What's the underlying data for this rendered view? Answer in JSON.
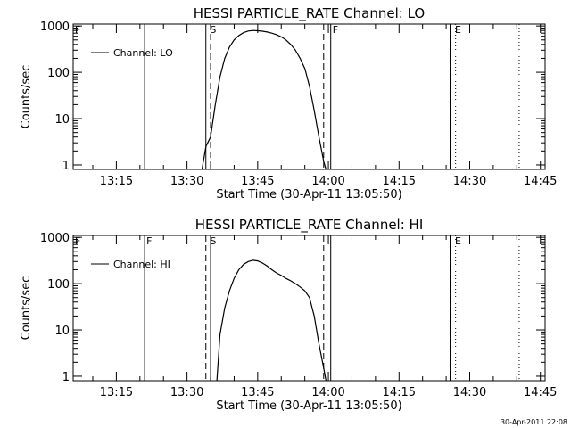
{
  "chart_data": [
    {
      "type": "line",
      "title": "HESSI PARTICLE_RATE Channel: LO",
      "xlabel": "Start Time (30-Apr-11 13:05:50)",
      "ylabel": "Counts/sec",
      "yscale": "log",
      "xlim": [
        "13:05:50",
        "14:46:00"
      ],
      "ylim": [
        0.8,
        1100
      ],
      "x_tick_labels": [
        "13:15",
        "13:30",
        "13:45",
        "14:00",
        "14:15",
        "14:30",
        "14:45"
      ],
      "y_tick_labels": [
        "1",
        "10",
        "100",
        "1000"
      ],
      "legend": {
        "position": "upper-left",
        "entries": [
          "Channel: LO"
        ]
      },
      "series": [
        {
          "name": "Channel: LO",
          "x": [
            "13:33:10",
            "13:34:00",
            "13:35:00",
            "13:36:00",
            "13:37:00",
            "13:38:00",
            "13:39:00",
            "13:40:00",
            "13:41:00",
            "13:42:00",
            "13:43:00",
            "13:44:00",
            "13:45:00",
            "13:46:00",
            "13:47:00",
            "13:48:00",
            "13:49:00",
            "13:50:00",
            "13:51:00",
            "13:52:00",
            "13:53:00",
            "13:54:00",
            "13:55:00",
            "13:56:00",
            "13:57:00",
            "13:58:00",
            "13:59:00",
            "13:59:30"
          ],
          "values": [
            0.8,
            2.5,
            4,
            20,
            80,
            200,
            350,
            500,
            620,
            720,
            780,
            800,
            790,
            770,
            740,
            700,
            650,
            580,
            500,
            400,
            300,
            200,
            120,
            50,
            15,
            4,
            1.2,
            0.8
          ]
        }
      ],
      "markers": [
        {
          "time": "13:21:00",
          "style": "solid",
          "label": ""
        },
        {
          "time": "13:34:00",
          "style": "solid",
          "label": "S"
        },
        {
          "time": "13:35:00",
          "style": "dashed",
          "label": ""
        },
        {
          "time": "13:59:00",
          "style": "dashed",
          "label": ""
        },
        {
          "time": "14:00:30",
          "style": "solid",
          "label": "F"
        },
        {
          "time": "14:25:50",
          "style": "solid",
          "label": "E"
        },
        {
          "time": "14:27:00",
          "style": "dotted",
          "label": ""
        },
        {
          "time": "14:40:30",
          "style": "dotted",
          "label": ""
        }
      ],
      "top_letters": [
        {
          "time": "13:05:50",
          "label": "F"
        },
        {
          "time": "13:34:30",
          "label": "S"
        },
        {
          "time": "14:00:30",
          "label": "F"
        },
        {
          "time": "14:26:30",
          "label": "E"
        }
      ]
    },
    {
      "type": "line",
      "title": "HESSI PARTICLE_RATE Channel: HI",
      "xlabel": "Start Time (30-Apr-11 13:05:50)",
      "ylabel": "Counts/sec",
      "yscale": "log",
      "xlim": [
        "13:05:50",
        "14:46:00"
      ],
      "ylim": [
        0.8,
        1100
      ],
      "x_tick_labels": [
        "13:15",
        "13:30",
        "13:45",
        "14:00",
        "14:15",
        "14:30",
        "14:45"
      ],
      "y_tick_labels": [
        "1",
        "10",
        "100",
        "1000"
      ],
      "legend": {
        "position": "upper-left",
        "entries": [
          "Channel: HI"
        ]
      },
      "series": [
        {
          "name": "Channel: HI",
          "x": [
            "13:36:20",
            "13:37:00",
            "13:38:00",
            "13:39:00",
            "13:40:00",
            "13:41:00",
            "13:42:00",
            "13:43:00",
            "13:44:00",
            "13:45:00",
            "13:46:00",
            "13:47:00",
            "13:48:00",
            "13:49:00",
            "13:50:00",
            "13:51:00",
            "13:52:00",
            "13:53:00",
            "13:54:00",
            "13:55:00",
            "13:56:00",
            "13:57:00",
            "13:58:00",
            "13:59:00",
            "13:59:30"
          ],
          "values": [
            0.8,
            8,
            30,
            70,
            130,
            200,
            260,
            300,
            320,
            310,
            280,
            240,
            200,
            170,
            150,
            130,
            115,
            100,
            85,
            70,
            50,
            20,
            5,
            1.5,
            0.8
          ]
        }
      ],
      "markers": [
        {
          "time": "13:21:00",
          "style": "solid",
          "label": "F"
        },
        {
          "time": "13:34:00",
          "style": "dashed",
          "label": "S"
        },
        {
          "time": "13:35:00",
          "style": "solid",
          "label": ""
        },
        {
          "time": "13:59:00",
          "style": "dashed",
          "label": ""
        },
        {
          "time": "14:00:30",
          "style": "solid",
          "label": ""
        },
        {
          "time": "14:25:50",
          "style": "solid",
          "label": "E"
        },
        {
          "time": "14:27:00",
          "style": "dotted",
          "label": ""
        },
        {
          "time": "14:40:30",
          "style": "dotted",
          "label": ""
        }
      ],
      "top_letters": [
        {
          "time": "13:05:50",
          "label": "F"
        },
        {
          "time": "13:21:00",
          "label": "F"
        },
        {
          "time": "13:34:30",
          "label": "S"
        },
        {
          "time": "14:26:30",
          "label": "E"
        }
      ]
    }
  ],
  "footer": {
    "timestamp": "30-Apr-2011 22:08"
  }
}
